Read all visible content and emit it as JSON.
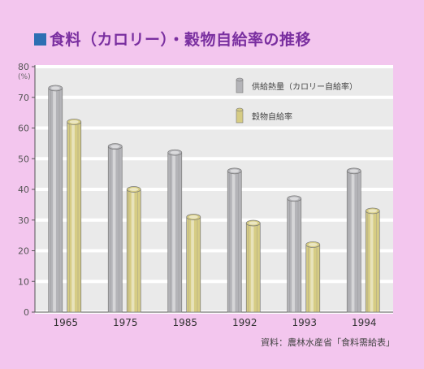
{
  "title": "食料（カロリー）・穀物自給率の推移",
  "unit": "(%)",
  "source": "資料：農林水産省「食料需給表」",
  "chart_data": {
    "type": "bar",
    "categories": [
      "1965",
      "1975",
      "1985",
      "1992",
      "1993",
      "1994"
    ],
    "series": [
      {
        "name": "供給熱量（カロリー自給率）",
        "values": [
          73,
          54,
          52,
          46,
          37,
          46
        ],
        "color": "#b4b4b8"
      },
      {
        "name": "穀物自給率",
        "values": [
          62,
          40,
          31,
          29,
          22,
          33
        ],
        "color": "#d6cc84"
      }
    ],
    "ylim": [
      0,
      80
    ],
    "yticks": [
      0,
      10,
      20,
      30,
      40,
      50,
      60,
      70,
      80
    ],
    "grid": true,
    "legend": "top-right"
  }
}
